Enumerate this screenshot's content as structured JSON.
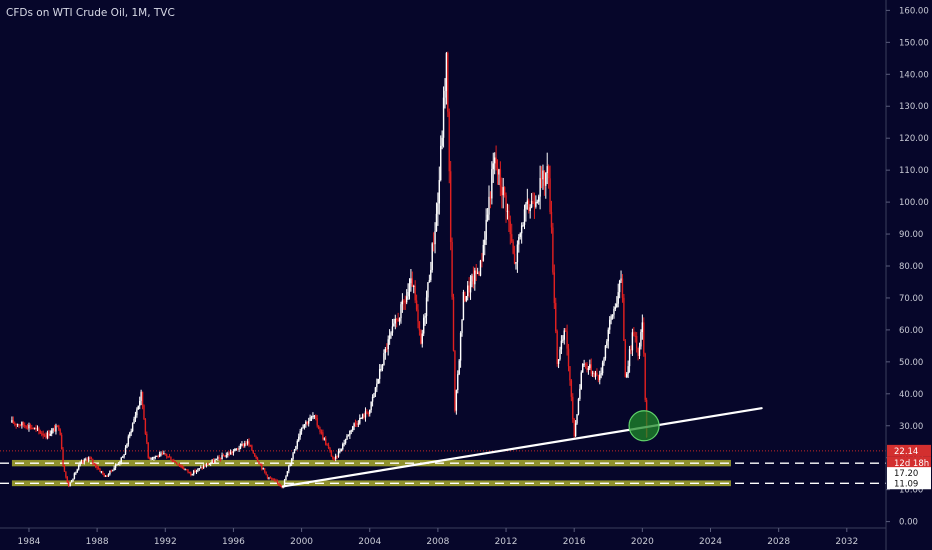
{
  "chart_data": {
    "type": "candlestick",
    "title": "CFDs on WTI Crude Oil, 1M, TVC",
    "xlabel": "",
    "ylabel": "",
    "x_range": [
      1982.3,
      2034.3
    ],
    "ylim": [
      -2,
      162
    ],
    "y_ticks": [
      "160.00",
      "150.00",
      "140.00",
      "130.00",
      "120.00",
      "110.00",
      "100.00",
      "90.00",
      "80.00",
      "70.00",
      "60.00",
      "50.00",
      "40.00",
      "30.00",
      "20.00",
      "10.00",
      "0.00"
    ],
    "x_ticks": [
      "1984",
      "1988",
      "1992",
      "1996",
      "2000",
      "2004",
      "2008",
      "2012",
      "2016",
      "2020",
      "2024",
      "2028",
      "2032"
    ],
    "price_path": [
      [
        1983.0,
        31
      ],
      [
        1984.0,
        30
      ],
      [
        1985.0,
        27
      ],
      [
        1985.8,
        30
      ],
      [
        1986.0,
        18
      ],
      [
        1986.3,
        11
      ],
      [
        1987.0,
        18
      ],
      [
        1987.5,
        20
      ],
      [
        1988.5,
        14
      ],
      [
        1989.5,
        20
      ],
      [
        1990.6,
        40
      ],
      [
        1991.0,
        20
      ],
      [
        1992.0,
        21
      ],
      [
        1993.5,
        15
      ],
      [
        1994.5,
        18
      ],
      [
        1996.0,
        22
      ],
      [
        1996.8,
        25
      ],
      [
        1998.0,
        14
      ],
      [
        1998.9,
        11
      ],
      [
        2000.0,
        30
      ],
      [
        2000.7,
        33
      ],
      [
        2001.9,
        19
      ],
      [
        2003.0,
        30
      ],
      [
        2004.0,
        35
      ],
      [
        2005.0,
        55
      ],
      [
        2006.5,
        75
      ],
      [
        2007.0,
        55
      ],
      [
        2008.0,
        100
      ],
      [
        2008.5,
        145
      ],
      [
        2009.0,
        34
      ],
      [
        2009.5,
        70
      ],
      [
        2010.5,
        80
      ],
      [
        2011.3,
        113
      ],
      [
        2012.0,
        100
      ],
      [
        2012.5,
        80
      ],
      [
        2013.0,
        95
      ],
      [
        2014.0,
        105
      ],
      [
        2014.5,
        110
      ],
      [
        2015.0,
        50
      ],
      [
        2015.5,
        60
      ],
      [
        2016.0,
        27
      ],
      [
        2016.5,
        50
      ],
      [
        2017.5,
        45
      ],
      [
        2018.0,
        60
      ],
      [
        2018.8,
        76
      ],
      [
        2019.0,
        45
      ],
      [
        2019.5,
        60
      ],
      [
        2019.8,
        52
      ],
      [
        2020.0,
        63
      ],
      [
        2020.3,
        20
      ]
    ],
    "support_zones": [
      {
        "low": 17.3,
        "high": 19.3,
        "label": "17.20"
      },
      {
        "low": 11.1,
        "high": 12.9,
        "label": "11.09"
      }
    ],
    "trendline": {
      "start": [
        1998.9,
        11
      ],
      "end": [
        2027.0,
        35.5
      ]
    },
    "highlight_circle": {
      "x": 2020.1,
      "y": 30
    },
    "current_price": {
      "value": 22.14,
      "label": "22.14",
      "countdown": "12d 18h"
    }
  }
}
